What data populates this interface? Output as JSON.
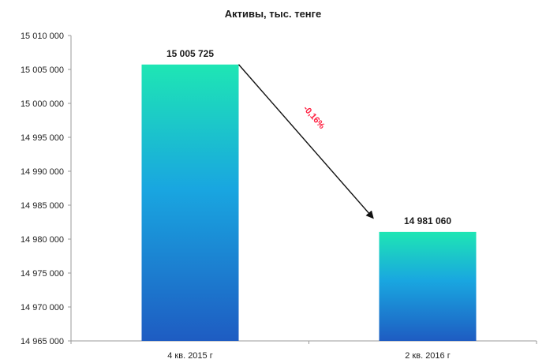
{
  "chart_data": {
    "type": "bar",
    "title": "Активы, тыс. тенге",
    "categories": [
      "4 кв. 2015 г",
      "2 кв. 2016 г"
    ],
    "values": [
      15005725,
      14981060
    ],
    "data_labels": [
      "15 005 725",
      "14 981 060"
    ],
    "ylim": [
      14965000,
      15010000
    ],
    "yticks": [
      15010000,
      15005000,
      15000000,
      14995000,
      14990000,
      14985000,
      14980000,
      14975000,
      14970000,
      14965000
    ],
    "ytick_labels": [
      "15 010 000",
      "15 005 000",
      "15 000 000",
      "14 995 000",
      "14 990 000",
      "14 985 000",
      "14 980 000",
      "14 975 000",
      "14 970 000",
      "14 965 000"
    ],
    "xlabel": "",
    "ylabel": "",
    "grid": false,
    "legend": "none",
    "annotation": {
      "text": "-0,16%",
      "color": "#ff1a3c",
      "from_category": 0,
      "to_category": 1
    },
    "bar_gradient": {
      "top": "#1ee6b4",
      "middle": "#19a6e0",
      "bottom": "#1e5cc2"
    }
  }
}
